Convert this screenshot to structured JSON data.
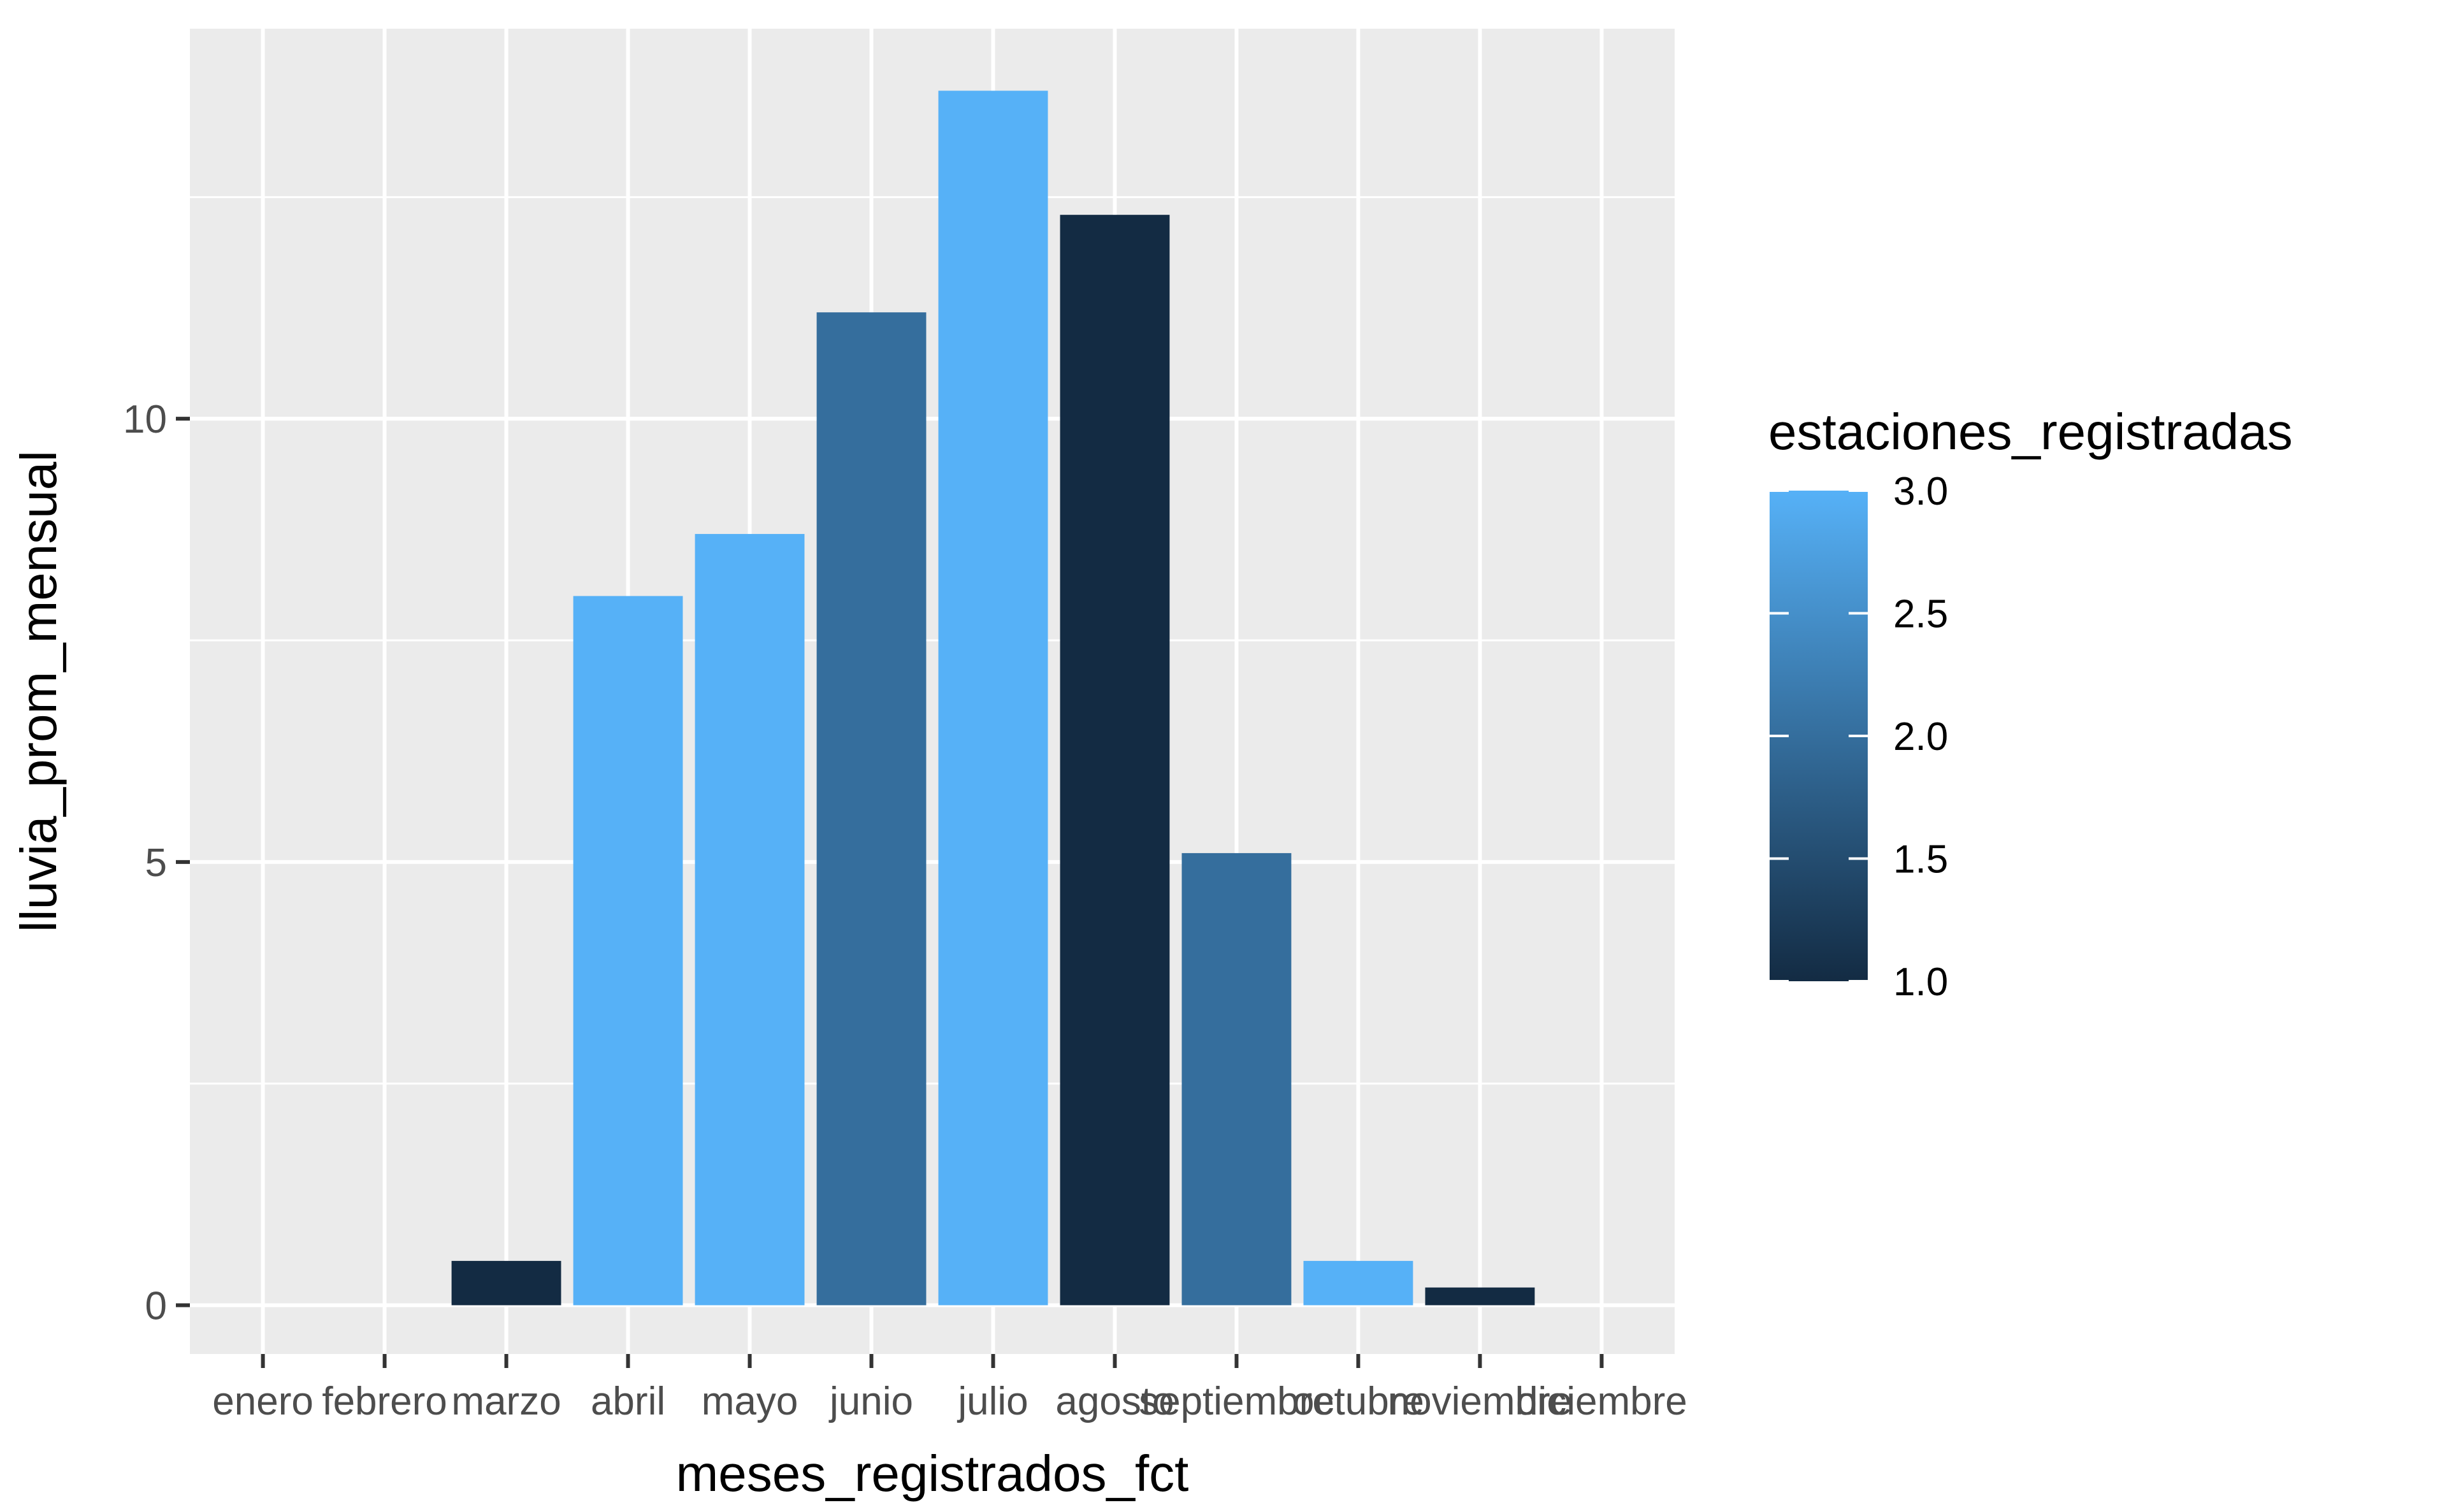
{
  "chart_data": {
    "type": "bar",
    "categories": [
      "enero",
      "febrero",
      "marzo",
      "abril",
      "mayo",
      "junio",
      "julio",
      "agosto",
      "septiembre",
      "octubre",
      "noviembre",
      "diciembre"
    ],
    "values": [
      0,
      0,
      0.5,
      8.0,
      8.7,
      11.2,
      13.7,
      12.3,
      5.1,
      0.5,
      0.2,
      0
    ],
    "fill_values": [
      null,
      null,
      1,
      3,
      3,
      2,
      3,
      1,
      2,
      3,
      1,
      null
    ],
    "xlabel": "meses_registrados_fct",
    "ylabel": "lluvia_prom_mensual",
    "ylim": [
      -0.55,
      14.4
    ],
    "yticks": [
      0,
      5,
      10
    ],
    "ytick_labels": [
      "0",
      "5",
      "10"
    ],
    "grid": true,
    "panel_background": "#EBEBEB",
    "legend": {
      "title": "estaciones_registradas",
      "position": "right",
      "range": [
        1.0,
        3.0
      ],
      "breaks": [
        1.0,
        1.5,
        2.0,
        2.5,
        3.0
      ],
      "labels": [
        "1.0",
        "1.5",
        "2.0",
        "2.5",
        "3.0"
      ],
      "low_color": "#132B43",
      "high_color": "#56B1F7"
    }
  }
}
